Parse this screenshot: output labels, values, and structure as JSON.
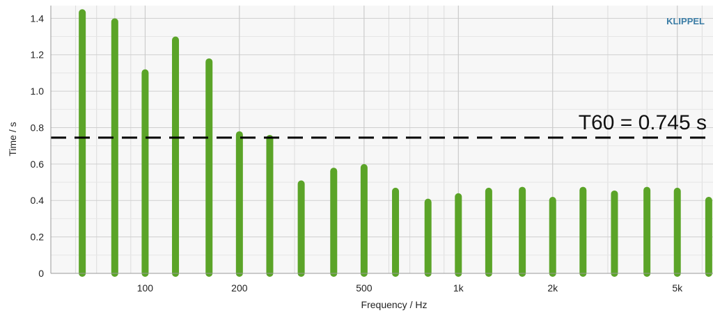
{
  "brand": {
    "text": "KLIPPEL",
    "color": "#3a7ca5"
  },
  "chart_data": {
    "type": "bar",
    "xlabel": "Frequency / Hz",
    "ylabel": "Time / s",
    "x_scale": "log",
    "xlim": [
      50,
      6500
    ],
    "ylim": [
      0,
      1.47
    ],
    "grid": true,
    "bar_color": "#5ba428",
    "x_ticks": [
      {
        "value": 100,
        "label": "100"
      },
      {
        "value": 200,
        "label": "200"
      },
      {
        "value": 500,
        "label": "500"
      },
      {
        "value": 1000,
        "label": "1k"
      },
      {
        "value": 2000,
        "label": "2k"
      },
      {
        "value": 5000,
        "label": "5k"
      }
    ],
    "y_ticks": [
      {
        "value": 0,
        "label": "0"
      },
      {
        "value": 0.2,
        "label": "0.2"
      },
      {
        "value": 0.4,
        "label": "0.4"
      },
      {
        "value": 0.6,
        "label": "0.6"
      },
      {
        "value": 0.8,
        "label": "0.8"
      },
      {
        "value": 1.0,
        "label": "1.0"
      },
      {
        "value": 1.2,
        "label": "1.2"
      },
      {
        "value": 1.4,
        "label": "1.4"
      }
    ],
    "x": [
      63,
      80,
      100,
      125,
      160,
      200,
      250,
      315,
      400,
      500,
      630,
      800,
      1000,
      1250,
      1600,
      2000,
      2500,
      3150,
      4000,
      5000,
      6300
    ],
    "values": [
      1.45,
      1.4,
      1.12,
      1.3,
      1.18,
      0.78,
      0.76,
      0.51,
      0.58,
      0.6,
      0.47,
      0.41,
      0.44,
      0.47,
      0.475,
      0.42,
      0.475,
      0.455,
      0.475,
      0.47,
      0.42
    ],
    "reference_line": {
      "value": 0.745,
      "label": "T60 = 0.745 s",
      "style": "dashed",
      "color": "#000000"
    }
  }
}
